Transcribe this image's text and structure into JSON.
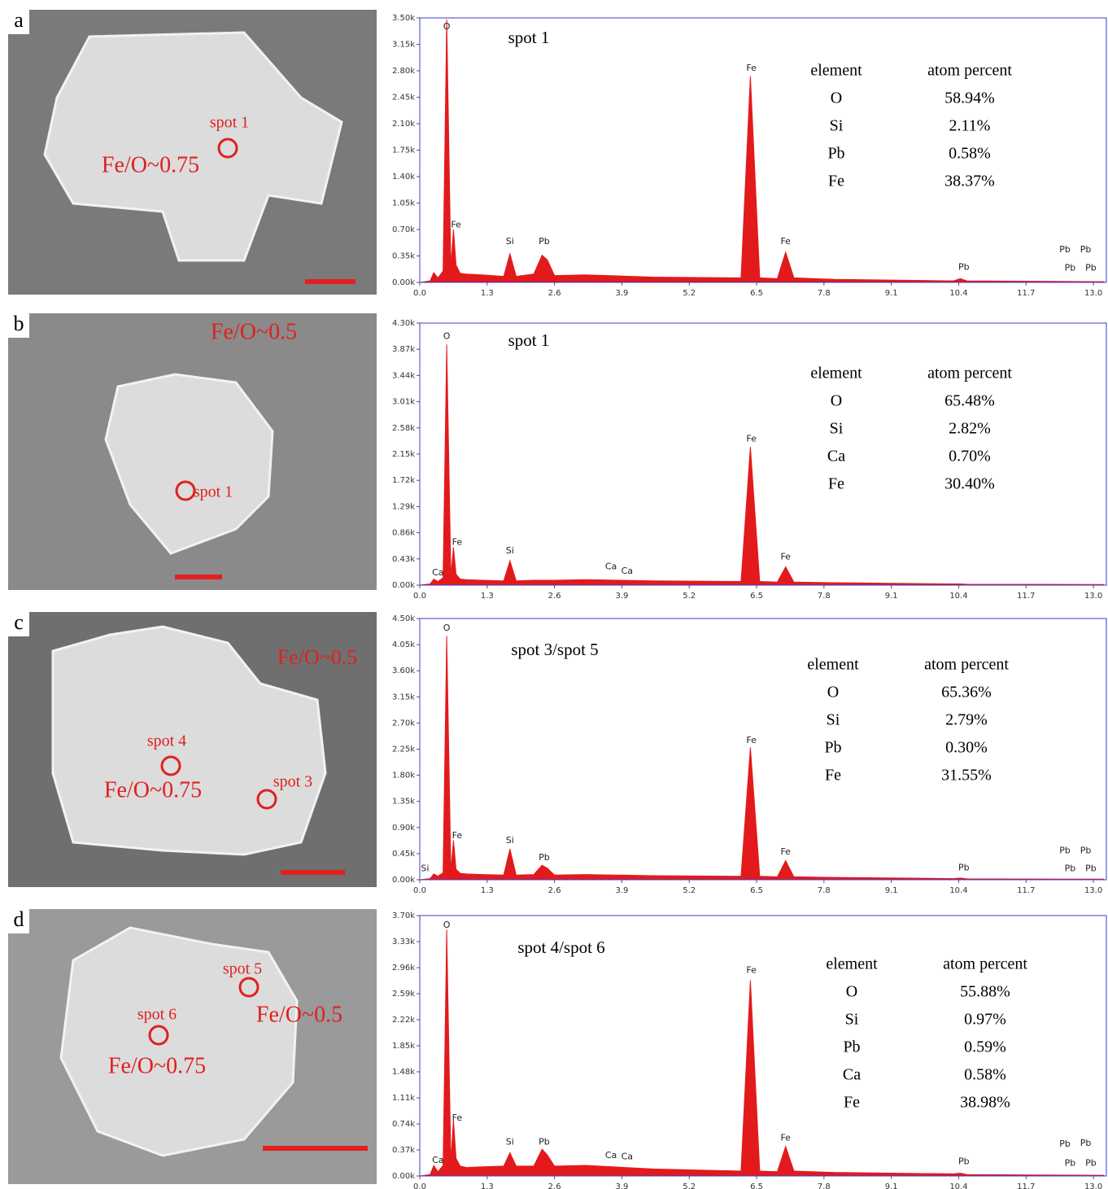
{
  "images": [
    {
      "label": "a",
      "annotations": [
        "spot 1",
        "Fe/O~0.75"
      ]
    },
    {
      "label": "b",
      "annotations": [
        "Fe/O~0.5",
        "spot 1"
      ]
    },
    {
      "label": "c",
      "annotations": [
        "Fe/O~0.5",
        "spot 4",
        "Fe/O~0.75",
        "spot 3"
      ]
    },
    {
      "label": "d",
      "annotations": [
        "spot 5",
        "Fe/O~0.5",
        "spot 6",
        "Fe/O~0.75"
      ]
    }
  ],
  "chart_data": [
    {
      "type": "area",
      "title": "spot 1",
      "color": "#e31a1c",
      "x": [
        0,
        0.2,
        0.27,
        0.35,
        0.45,
        0.52,
        0.6,
        0.65,
        0.7,
        0.78,
        0.9,
        1.2,
        1.62,
        1.74,
        1.86,
        2.2,
        2.36,
        2.46,
        2.6,
        3.2,
        4.5,
        6.2,
        6.38,
        6.56,
        6.9,
        7.06,
        7.22,
        8.0,
        10.3,
        10.43,
        10.56,
        13.2
      ],
      "values": [
        0,
        20,
        130,
        60,
        150,
        3480,
        200,
        700,
        230,
        120,
        110,
        100,
        80,
        380,
        80,
        110,
        360,
        300,
        90,
        100,
        70,
        60,
        2730,
        60,
        50,
        400,
        60,
        40,
        20,
        50,
        20,
        10
      ],
      "xlim": [
        0,
        13.25
      ],
      "xticks": [
        {
          "value": 0,
          "label": "0.0"
        },
        1.3,
        2.6,
        3.9,
        5.2,
        6.5,
        7.8,
        9.1,
        10.4,
        11.7,
        {
          "value": 13,
          "label": "13.0"
        }
      ],
      "ylim": [
        0,
        3500
      ],
      "yticks": [
        {
          "value": 0,
          "label": "0.00k"
        },
        {
          "value": 350,
          "label": "0.35k"
        },
        {
          "value": 700,
          "label": "0.70k"
        },
        {
          "value": 1050,
          "label": "1.05k"
        },
        {
          "value": 1400,
          "label": "1.40k"
        },
        {
          "value": 1750,
          "label": "1.75k"
        },
        {
          "value": 2100,
          "label": "2.10k"
        },
        {
          "value": 2450,
          "label": "2.45k"
        },
        {
          "value": 2800,
          "label": "2.80k"
        },
        {
          "value": 3150,
          "label": "3.15k"
        },
        {
          "value": 3500,
          "label": "3.50k"
        }
      ],
      "peak_labels": [
        {
          "text": "O",
          "x": 0.52,
          "y": 3380
        },
        {
          "text": "Fe",
          "x": 0.7,
          "y": 760
        },
        {
          "text": "Si",
          "x": 1.74,
          "y": 540
        },
        {
          "text": "Pb",
          "x": 2.4,
          "y": 540
        },
        {
          "text": "Fe",
          "x": 6.4,
          "y": 2830
        },
        {
          "text": "Fe",
          "x": 7.06,
          "y": 540
        },
        {
          "text": "Pb",
          "x": 10.5,
          "y": 200
        },
        {
          "text": "Pb",
          "x": 12.45,
          "y": 430
        },
        {
          "text": "Pb",
          "x": 12.85,
          "y": 430
        },
        {
          "text": "Pb",
          "x": 12.55,
          "y": 190
        },
        {
          "text": "Pb",
          "x": 12.95,
          "y": 190
        }
      ],
      "table": {
        "columns": [
          "element",
          "atom percent"
        ],
        "rows": [
          [
            "O",
            "58.94%"
          ],
          [
            "Si",
            "2.11%"
          ],
          [
            "Pb",
            "0.58%"
          ],
          [
            "Fe",
            "38.37%"
          ]
        ]
      }
    },
    {
      "type": "area",
      "title": "spot 1",
      "color": "#e31a1c",
      "x": [
        0,
        0.2,
        0.27,
        0.35,
        0.45,
        0.52,
        0.6,
        0.65,
        0.7,
        0.78,
        0.9,
        1.2,
        1.62,
        1.74,
        1.86,
        2.2,
        2.36,
        2.46,
        2.6,
        3.2,
        4.5,
        6.2,
        6.38,
        6.56,
        6.9,
        7.06,
        7.22,
        8.0,
        10.3,
        10.43,
        10.56,
        13.2
      ],
      "values": [
        0,
        20,
        100,
        60,
        120,
        3950,
        150,
        620,
        180,
        100,
        90,
        80,
        70,
        400,
        70,
        80,
        80,
        80,
        80,
        90,
        70,
        60,
        2270,
        60,
        50,
        300,
        50,
        40,
        20,
        20,
        15,
        10
      ],
      "xlim": [
        0,
        13.25
      ],
      "xticks": [
        {
          "value": 0,
          "label": "0.0"
        },
        1.3,
        2.6,
        3.9,
        5.2,
        6.5,
        7.8,
        9.1,
        10.4,
        11.7,
        {
          "value": 13,
          "label": "13.0"
        }
      ],
      "ylim": [
        0,
        4300
      ],
      "yticks": [
        {
          "value": 0,
          "label": "0.00k"
        },
        {
          "value": 430,
          "label": "0.43k"
        },
        {
          "value": 860,
          "label": "0.86k"
        },
        {
          "value": 1290,
          "label": "1.29k"
        },
        {
          "value": 1720,
          "label": "1.72k"
        },
        {
          "value": 2150,
          "label": "2.15k"
        },
        {
          "value": 2580,
          "label": "2.58k"
        },
        {
          "value": 3010,
          "label": "3.01k"
        },
        {
          "value": 3440,
          "label": "3.44k"
        },
        {
          "value": 3870,
          "label": "3.87k"
        },
        {
          "value": 4300,
          "label": "4.30k"
        }
      ],
      "peak_labels": [
        {
          "text": "O",
          "x": 0.52,
          "y": 4080
        },
        {
          "text": "Ca",
          "x": 0.35,
          "y": 200
        },
        {
          "text": "Fe",
          "x": 0.72,
          "y": 700
        },
        {
          "text": "Si",
          "x": 1.74,
          "y": 560
        },
        {
          "text": "Ca",
          "x": 3.69,
          "y": 300
        },
        {
          "text": "Ca",
          "x": 4.0,
          "y": 230
        },
        {
          "text": "Fe",
          "x": 6.4,
          "y": 2400
        },
        {
          "text": "Fe",
          "x": 7.06,
          "y": 460
        }
      ],
      "table": {
        "columns": [
          "element",
          "atom percent"
        ],
        "rows": [
          [
            "O",
            "65.48%"
          ],
          [
            "Si",
            "2.82%"
          ],
          [
            "Ca",
            "0.70%"
          ],
          [
            "Fe",
            "30.40%"
          ]
        ]
      }
    },
    {
      "type": "area",
      "title": "spot 3/spot 5",
      "color": "#e31a1c",
      "x": [
        0,
        0.2,
        0.27,
        0.35,
        0.45,
        0.52,
        0.6,
        0.65,
        0.7,
        0.78,
        0.9,
        1.2,
        1.62,
        1.74,
        1.86,
        2.2,
        2.36,
        2.46,
        2.6,
        3.2,
        4.5,
        6.2,
        6.38,
        6.56,
        6.9,
        7.06,
        7.22,
        8.0,
        10.3,
        10.43,
        10.56,
        13.2
      ],
      "values": [
        0,
        20,
        100,
        60,
        120,
        4200,
        150,
        680,
        180,
        110,
        100,
        90,
        80,
        530,
        80,
        90,
        250,
        200,
        80,
        90,
        70,
        60,
        2280,
        60,
        50,
        330,
        50,
        40,
        20,
        30,
        15,
        10
      ],
      "xlim": [
        0,
        13.25
      ],
      "xticks": [
        {
          "value": 0,
          "label": "0.0"
        },
        1.3,
        2.6,
        3.9,
        5.2,
        6.5,
        7.8,
        9.1,
        10.4,
        11.7,
        {
          "value": 13,
          "label": "13.0"
        }
      ],
      "ylim": [
        0,
        4500
      ],
      "yticks": [
        {
          "value": 0,
          "label": "0.00k"
        },
        {
          "value": 450,
          "label": "0.45k"
        },
        {
          "value": 900,
          "label": "0.90k"
        },
        {
          "value": 1350,
          "label": "1.35k"
        },
        {
          "value": 1800,
          "label": "1.80k"
        },
        {
          "value": 2250,
          "label": "2.25k"
        },
        {
          "value": 2700,
          "label": "2.70k"
        },
        {
          "value": 3150,
          "label": "3.15k"
        },
        {
          "value": 3600,
          "label": "3.60k"
        },
        {
          "value": 4050,
          "label": "4.05k"
        },
        {
          "value": 4500,
          "label": "4.50k"
        }
      ],
      "peak_labels": [
        {
          "text": "O",
          "x": 0.52,
          "y": 4330
        },
        {
          "text": "Si",
          "x": 0.1,
          "y": 190
        },
        {
          "text": "Fe",
          "x": 0.72,
          "y": 760
        },
        {
          "text": "Si",
          "x": 1.74,
          "y": 670
        },
        {
          "text": "Pb",
          "x": 2.4,
          "y": 380
        },
        {
          "text": "Fe",
          "x": 6.4,
          "y": 2400
        },
        {
          "text": "Fe",
          "x": 7.06,
          "y": 480
        },
        {
          "text": "Pb",
          "x": 10.5,
          "y": 200
        },
        {
          "text": "Pb",
          "x": 12.45,
          "y": 500
        },
        {
          "text": "Pb",
          "x": 12.85,
          "y": 500
        },
        {
          "text": "Pb",
          "x": 12.55,
          "y": 190
        },
        {
          "text": "Pb",
          "x": 12.95,
          "y": 190
        }
      ],
      "table": {
        "columns": [
          "element",
          "atom percent"
        ],
        "rows": [
          [
            "O",
            "65.36%"
          ],
          [
            "Si",
            "2.79%"
          ],
          [
            "Pb",
            "0.30%"
          ],
          [
            "Fe",
            "31.55%"
          ]
        ]
      }
    },
    {
      "type": "area",
      "title": "spot 4/spot 6",
      "color": "#e31a1c",
      "x": [
        0,
        0.2,
        0.27,
        0.35,
        0.45,
        0.52,
        0.6,
        0.65,
        0.7,
        0.78,
        0.9,
        1.2,
        1.62,
        1.74,
        1.86,
        2.2,
        2.36,
        2.46,
        2.6,
        3.2,
        4.5,
        6.2,
        6.38,
        6.56,
        6.9,
        7.06,
        7.22,
        8.0,
        10.3,
        10.43,
        10.56,
        13.2
      ],
      "values": [
        0,
        20,
        150,
        60,
        150,
        3500,
        200,
        800,
        250,
        140,
        120,
        130,
        140,
        330,
        140,
        140,
        380,
        300,
        140,
        150,
        100,
        70,
        2780,
        70,
        60,
        420,
        70,
        50,
        30,
        40,
        20,
        10
      ],
      "xlim": [
        0,
        13.25
      ],
      "xticks": [
        {
          "value": 0,
          "label": "0.0"
        },
        1.3,
        2.6,
        3.9,
        5.2,
        6.5,
        7.8,
        9.1,
        10.4,
        11.7,
        {
          "value": 13,
          "label": "13.0"
        }
      ],
      "ylim": [
        0,
        3700
      ],
      "yticks": [
        {
          "value": 0,
          "label": "0.00k"
        },
        {
          "value": 370,
          "label": "0.37k"
        },
        {
          "value": 740,
          "label": "0.74k"
        },
        {
          "value": 1110,
          "label": "1.11k"
        },
        {
          "value": 1480,
          "label": "1.48k"
        },
        {
          "value": 1850,
          "label": "1.85k"
        },
        {
          "value": 2220,
          "label": "2.22k"
        },
        {
          "value": 2590,
          "label": "2.59k"
        },
        {
          "value": 2960,
          "label": "2.96k"
        },
        {
          "value": 3330,
          "label": "3.33k"
        },
        {
          "value": 3700,
          "label": "3.70k"
        }
      ],
      "peak_labels": [
        {
          "text": "O",
          "x": 0.52,
          "y": 3560
        },
        {
          "text": "Ca",
          "x": 0.35,
          "y": 220
        },
        {
          "text": "Fe",
          "x": 0.72,
          "y": 820
        },
        {
          "text": "Si",
          "x": 1.74,
          "y": 480
        },
        {
          "text": "Pb",
          "x": 2.4,
          "y": 480
        },
        {
          "text": "Ca",
          "x": 3.69,
          "y": 290
        },
        {
          "text": "Ca",
          "x": 4.0,
          "y": 270
        },
        {
          "text": "Fe",
          "x": 6.4,
          "y": 2920
        },
        {
          "text": "Fe",
          "x": 7.06,
          "y": 540
        },
        {
          "text": "Pb",
          "x": 10.5,
          "y": 200
        },
        {
          "text": "Pb",
          "x": 12.45,
          "y": 450
        },
        {
          "text": "Pb",
          "x": 12.85,
          "y": 460
        },
        {
          "text": "Pb",
          "x": 12.55,
          "y": 180
        },
        {
          "text": "Pb",
          "x": 12.95,
          "y": 180
        }
      ],
      "table": {
        "columns": [
          "element",
          "atom percent"
        ],
        "rows": [
          [
            "O",
            "55.88%"
          ],
          [
            "Si",
            "0.97%"
          ],
          [
            "Pb",
            "0.59%"
          ],
          [
            "Ca",
            "0.58%"
          ],
          [
            "Fe",
            "38.98%"
          ]
        ]
      }
    }
  ]
}
